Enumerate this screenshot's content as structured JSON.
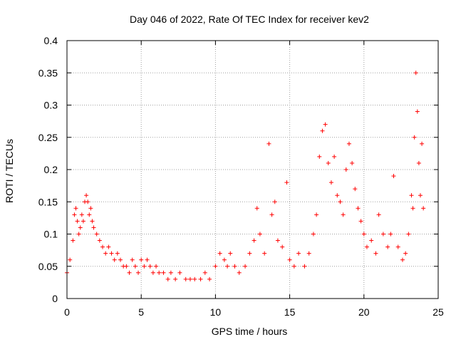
{
  "chart_data": {
    "type": "scatter",
    "title": "Day 046 of 2022, Rate Of TEC Index for receiver kev2",
    "xlabel": "GPS time / hours",
    "ylabel": "ROTI / TECUs",
    "xlim": [
      0,
      25
    ],
    "ylim": [
      0,
      0.4
    ],
    "xticks": [
      0,
      5,
      10,
      15,
      20,
      25
    ],
    "yticks": [
      0,
      0.05,
      0.1,
      0.15,
      0.2,
      0.25,
      0.3,
      0.35,
      0.4
    ],
    "xtick_labels": [
      "0",
      "5",
      "10",
      "15",
      "20",
      "25"
    ],
    "ytick_labels": [
      "0",
      "0.05",
      "0.1",
      "0.15",
      "0.2",
      "0.25",
      "0.3",
      "0.35",
      "0.4"
    ],
    "grid": true,
    "marker": "+",
    "color": "#ff0000",
    "series": [
      {
        "x": [
          0.0,
          0.2,
          0.4,
          0.5,
          0.6,
          0.7,
          0.8,
          0.9,
          1.0,
          1.1,
          1.2,
          1.3,
          1.4,
          1.5,
          1.6,
          1.7,
          1.8,
          2.0,
          2.2,
          2.4,
          2.6,
          2.8,
          3.0,
          3.2,
          3.4,
          3.6,
          3.8,
          4.0,
          4.2,
          4.4,
          4.6,
          4.8,
          5.0,
          5.2,
          5.4,
          5.6,
          5.8,
          6.0,
          6.2,
          6.5,
          6.8,
          7.0,
          7.3,
          7.6,
          8.0,
          8.3,
          8.6,
          9.0,
          9.3,
          9.6,
          10.0,
          10.3,
          10.6,
          10.8,
          11.0,
          11.3,
          11.6,
          12.0,
          12.3,
          12.6,
          12.8,
          13.0,
          13.3,
          13.6,
          13.8,
          14.0,
          14.2,
          14.5,
          14.8,
          15.0,
          15.3,
          15.6,
          16.0,
          16.3,
          16.6,
          16.8,
          17.0,
          17.2,
          17.4,
          17.6,
          17.8,
          18.0,
          18.2,
          18.4,
          18.6,
          18.8,
          19.0,
          19.2,
          19.4,
          19.6,
          19.8,
          20.0,
          20.2,
          20.5,
          20.8,
          21.0,
          21.3,
          21.6,
          21.8,
          22.0,
          22.3,
          22.6,
          22.8,
          23.0,
          23.2,
          23.3,
          23.4,
          23.5,
          23.6,
          23.7,
          23.8,
          23.9,
          24.0
        ],
        "y": [
          0.04,
          0.06,
          0.09,
          0.13,
          0.14,
          0.12,
          0.1,
          0.11,
          0.13,
          0.12,
          0.15,
          0.16,
          0.15,
          0.13,
          0.14,
          0.12,
          0.11,
          0.1,
          0.09,
          0.08,
          0.07,
          0.08,
          0.07,
          0.06,
          0.07,
          0.06,
          0.05,
          0.05,
          0.04,
          0.06,
          0.05,
          0.04,
          0.06,
          0.05,
          0.06,
          0.05,
          0.04,
          0.05,
          0.04,
          0.04,
          0.03,
          0.04,
          0.03,
          0.04,
          0.03,
          0.03,
          0.03,
          0.03,
          0.04,
          0.03,
          0.05,
          0.07,
          0.06,
          0.05,
          0.07,
          0.05,
          0.04,
          0.05,
          0.07,
          0.09,
          0.14,
          0.1,
          0.07,
          0.24,
          0.13,
          0.15,
          0.09,
          0.08,
          0.18,
          0.06,
          0.05,
          0.07,
          0.05,
          0.07,
          0.1,
          0.13,
          0.22,
          0.26,
          0.27,
          0.21,
          0.18,
          0.22,
          0.16,
          0.15,
          0.13,
          0.2,
          0.24,
          0.21,
          0.17,
          0.14,
          0.12,
          0.1,
          0.08,
          0.09,
          0.07,
          0.13,
          0.1,
          0.08,
          0.1,
          0.19,
          0.08,
          0.06,
          0.07,
          0.1,
          0.16,
          0.14,
          0.25,
          0.35,
          0.29,
          0.21,
          0.16,
          0.24,
          0.14
        ]
      }
    ]
  }
}
